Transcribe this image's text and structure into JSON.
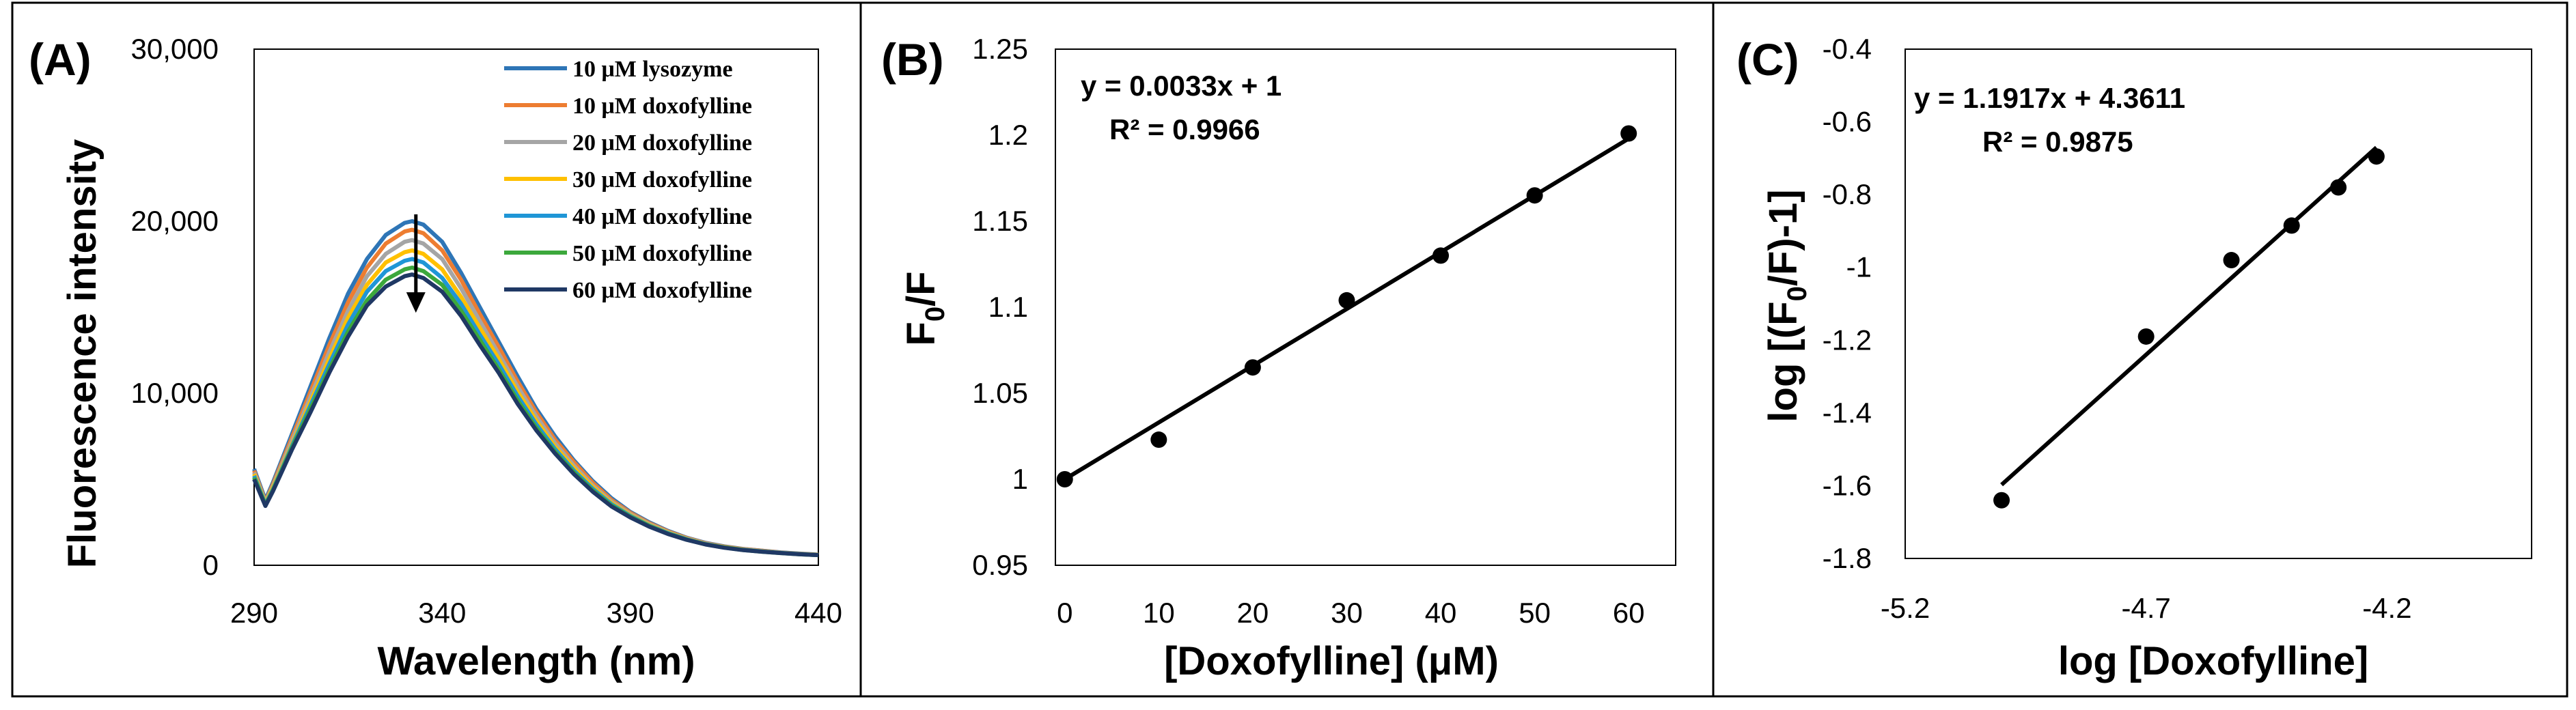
{
  "chart_data": [
    {
      "type": "line",
      "panel_label": "(A)",
      "xlabel": "Wavelength (nm)",
      "ylabel": "Fluorescence intensity",
      "xlim": [
        290,
        440
      ],
      "ylim": [
        0,
        30000
      ],
      "x_ticks": [
        "290",
        "340",
        "390",
        "440"
      ],
      "y_ticks": [
        "0",
        "10,000",
        "20,000",
        "30,000"
      ],
      "grid": false,
      "legend_position": "top-right",
      "x": [
        290,
        293,
        295,
        300,
        305,
        310,
        315,
        320,
        325,
        330,
        332,
        335,
        340,
        345,
        350,
        355,
        360,
        365,
        370,
        375,
        380,
        385,
        390,
        395,
        400,
        405,
        410,
        415,
        420,
        425,
        430,
        435,
        440
      ],
      "series": [
        {
          "name": "10 μM lysozyme",
          "color": "#2e75b6",
          "values": [
            5600,
            3800,
            4800,
            7600,
            10400,
            13200,
            15800,
            17800,
            19200,
            19900,
            20000,
            19800,
            18800,
            17000,
            15000,
            13000,
            11000,
            9100,
            7500,
            6100,
            4900,
            3900,
            3100,
            2500,
            2000,
            1600,
            1300,
            1100,
            950,
            850,
            750,
            680,
            620
          ]
        },
        {
          "name": "10 μM doxofylline",
          "color": "#ed7d31",
          "values": [
            5500,
            3700,
            4700,
            7400,
            10100,
            12800,
            15300,
            17300,
            18700,
            19400,
            19500,
            19300,
            18300,
            16600,
            14600,
            12700,
            10700,
            8900,
            7300,
            6000,
            4800,
            3800,
            3050,
            2450,
            1970,
            1580,
            1280,
            1080,
            940,
            840,
            740,
            670,
            610
          ]
        },
        {
          "name": "20 μM doxofylline",
          "color": "#a5a5a5",
          "values": [
            5400,
            3650,
            4600,
            7200,
            9800,
            12400,
            14800,
            16800,
            18100,
            18800,
            18900,
            18700,
            17800,
            16100,
            14200,
            12300,
            10400,
            8650,
            7100,
            5800,
            4650,
            3700,
            2980,
            2400,
            1930,
            1550,
            1260,
            1060,
            920,
            820,
            730,
            660,
            600
          ]
        },
        {
          "name": "30 μM doxofylline",
          "color": "#ffc000",
          "values": [
            5300,
            3600,
            4500,
            7000,
            9500,
            12000,
            14400,
            16300,
            17600,
            18200,
            18300,
            18100,
            17200,
            15600,
            13800,
            12000,
            10100,
            8400,
            6900,
            5650,
            4550,
            3620,
            2920,
            2350,
            1900,
            1530,
            1240,
            1050,
            910,
            810,
            720,
            650,
            600
          ]
        },
        {
          "name": "40 μM doxofylline",
          "color": "#1f96d6",
          "values": [
            5200,
            3550,
            4400,
            6900,
            9300,
            11700,
            14000,
            15900,
            17100,
            17700,
            17800,
            17600,
            16700,
            15200,
            13400,
            11700,
            9850,
            8200,
            6750,
            5500,
            4450,
            3550,
            2870,
            2310,
            1870,
            1510,
            1230,
            1040,
            900,
            800,
            720,
            650,
            590
          ]
        },
        {
          "name": "50 μM doxofylline",
          "color": "#3ca83c",
          "values": [
            5100,
            3500,
            4350,
            6800,
            9100,
            11400,
            13600,
            15400,
            16600,
            17200,
            17300,
            17100,
            16300,
            14800,
            13100,
            11400,
            9600,
            8000,
            6600,
            5400,
            4350,
            3480,
            2820,
            2280,
            1840,
            1490,
            1220,
            1030,
            890,
            790,
            710,
            640,
            590
          ]
        },
        {
          "name": "60 μM doxofylline",
          "color": "#1f3864",
          "values": [
            5000,
            3450,
            4300,
            6700,
            8900,
            11200,
            13300,
            15100,
            16200,
            16800,
            16900,
            16700,
            15900,
            14500,
            12800,
            11200,
            9400,
            7850,
            6500,
            5300,
            4280,
            3420,
            2780,
            2250,
            1820,
            1480,
            1210,
            1020,
            880,
            790,
            710,
            640,
            590
          ]
        }
      ],
      "arrow_wavelength": 333
    },
    {
      "type": "scatter",
      "panel_label": "(B)",
      "xlabel": "[Doxofylline] (μM)",
      "ylabel": "F",
      "ylabel_sub": "0",
      "ylabel_tail": "/F",
      "xlim": [
        -1,
        65
      ],
      "ylim": [
        0.95,
        1.25
      ],
      "x_ticks": [
        "0",
        "10",
        "20",
        "30",
        "40",
        "50",
        "60"
      ],
      "y_ticks": [
        "0.95",
        "1",
        "1.05",
        "1.1",
        "1.15",
        "1.2",
        "1.25"
      ],
      "grid": false,
      "points": {
        "x": [
          0,
          10,
          20,
          30,
          40,
          50,
          60
        ],
        "y": [
          1.0,
          1.023,
          1.065,
          1.104,
          1.13,
          1.165,
          1.201
        ]
      },
      "fit": {
        "slope": 0.0033,
        "intercept": 1,
        "x_range": [
          0,
          60
        ]
      },
      "equation": "y = 0.0033x + 1",
      "r2": "R² = 0.9966"
    },
    {
      "type": "scatter",
      "panel_label": "(C)",
      "xlabel": "log [Doxofylline]",
      "ylabel": "log [(F",
      "ylabel_sub": "0",
      "ylabel_tail": "/F)-1]",
      "xlim": [
        -5.2,
        -3.9
      ],
      "ylim": [
        -1.8,
        -0.4
      ],
      "x_ticks": [
        "-5.2",
        "-4.7",
        "-4.2"
      ],
      "y_ticks": [
        "-1.8",
        "-1.6",
        "-1.4",
        "-1.2",
        "-1",
        "-0.8",
        "-0.6",
        "-0.4"
      ],
      "grid": false,
      "points": {
        "x": [
          -5.0,
          -4.7,
          -4.523,
          -4.398,
          -4.301,
          -4.222
        ],
        "y": [
          -1.64,
          -1.19,
          -0.98,
          -0.885,
          -0.78,
          -0.695
        ]
      },
      "fit": {
        "slope": 1.1917,
        "intercept": 4.3611,
        "x_range": [
          -5.0,
          -4.222
        ]
      },
      "equation": "y = 1.1917x + 4.3611",
      "r2": "R² = 0.9875"
    }
  ]
}
